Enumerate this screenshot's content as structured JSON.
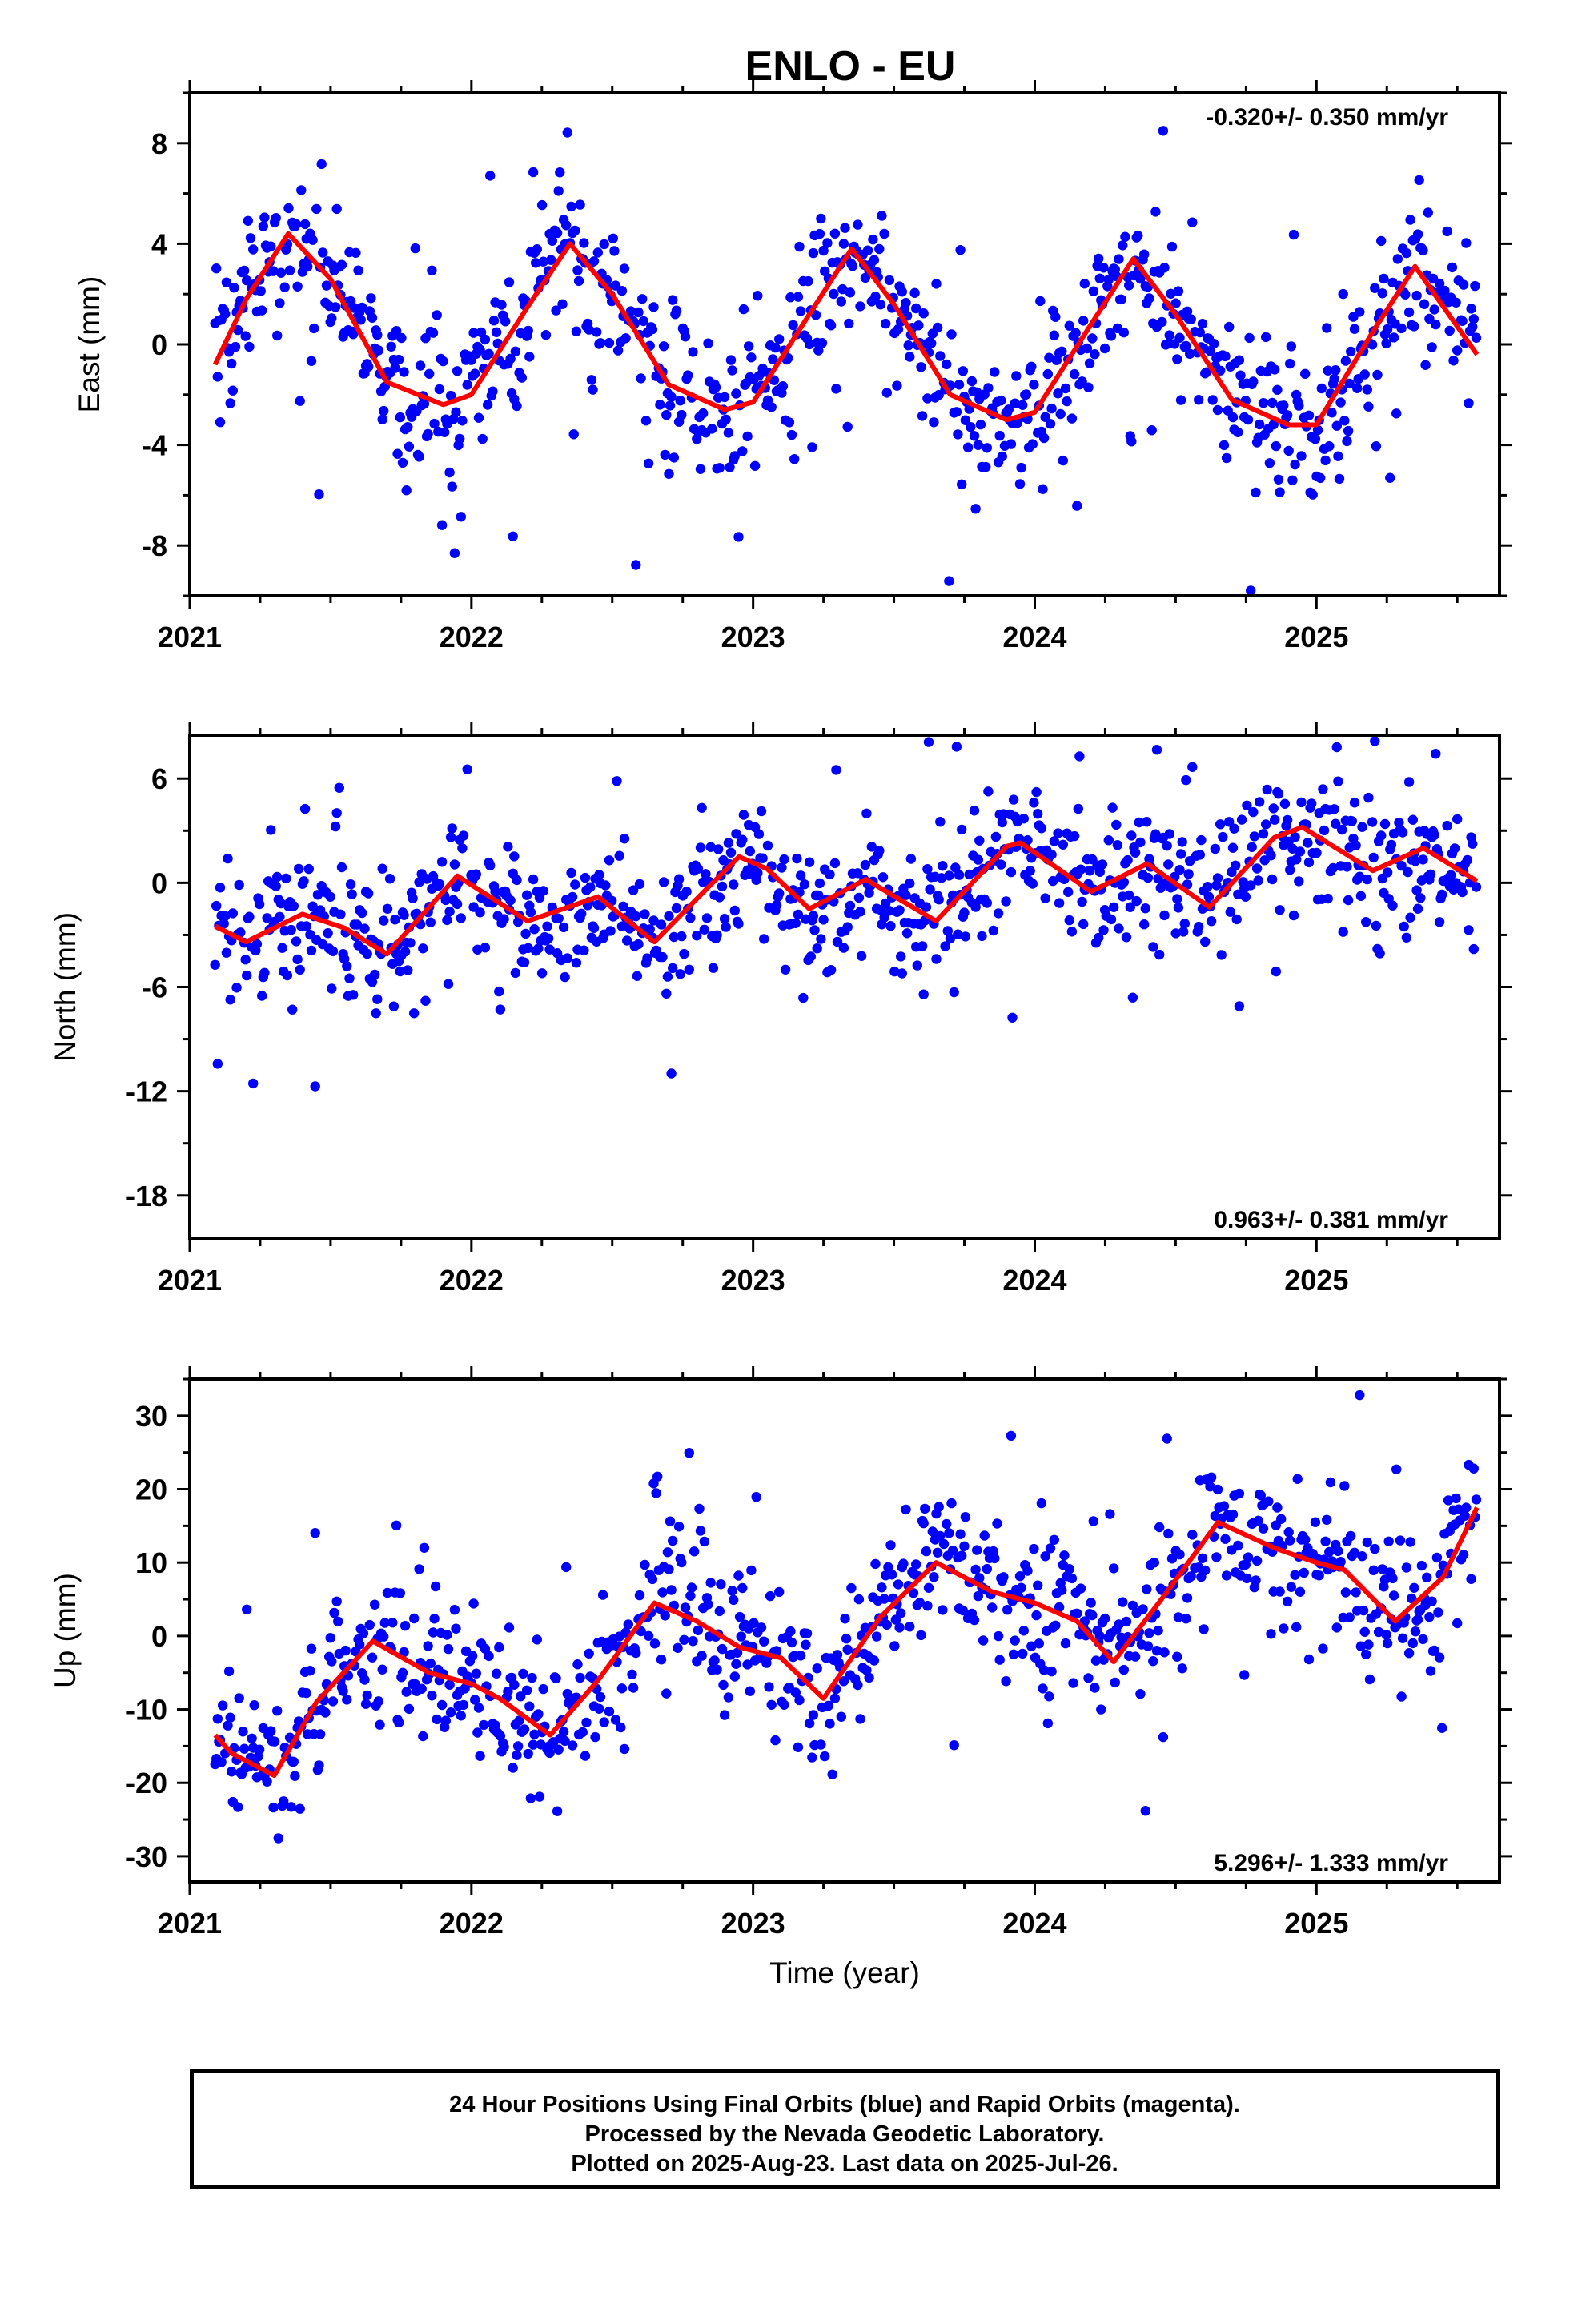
{
  "title": "ENLO - EU",
  "x_axis": {
    "label": "Time (year)",
    "ticks": [
      "2021",
      "2022",
      "2023",
      "2024",
      "2025"
    ]
  },
  "caption": [
    "24 Hour Positions Using Final Orbits (blue) and Rapid Orbits (magenta).",
    "Processed by the Nevada Geodetic Laboratory.",
    "Plotted on 2025-Aug-23. Last data on 2025-Jul-26."
  ],
  "colors": {
    "final_orbits_points": "#0000ff",
    "fit_line": "#ff0000",
    "frame": "#000000"
  },
  "chart_data": [
    {
      "type": "scatter",
      "panel": "east",
      "ylabel": "East (mm)",
      "rate_text": "-0.320+/- 0.350 mm/yr",
      "rate_position": "top-right",
      "xlim": [
        2021.0,
        2025.65
      ],
      "ylim": [
        -10,
        10
      ],
      "yticks": [
        "8",
        "4",
        "0",
        "-4",
        "-8"
      ],
      "ytick_values": [
        8,
        4,
        0,
        -4,
        -8
      ],
      "data_start": 2021.09,
      "data_end": 2025.57,
      "fit_curve": {
        "x": [
          2021.09,
          2021.2,
          2021.35,
          2021.5,
          2021.7,
          2021.9,
          2022.0,
          2022.2,
          2022.35,
          2022.5,
          2022.7,
          2022.9,
          2023.0,
          2023.2,
          2023.35,
          2023.5,
          2023.7,
          2023.9,
          2024.0,
          2024.2,
          2024.35,
          2024.5,
          2024.7,
          2024.9,
          2025.0,
          2025.2,
          2025.35,
          2025.57
        ],
        "y": [
          -0.8,
          1.8,
          4.4,
          2.6,
          -1.5,
          -2.4,
          -2.0,
          1.5,
          4.0,
          2.0,
          -1.6,
          -2.6,
          -2.3,
          1.2,
          3.8,
          1.6,
          -2.0,
          -3.0,
          -2.7,
          0.8,
          3.4,
          1.2,
          -2.2,
          -3.2,
          -3.2,
          0.5,
          3.1,
          -0.4
        ]
      },
      "scatter_sigma": 1.5
    },
    {
      "type": "scatter",
      "panel": "north",
      "ylabel": "North (mm)",
      "rate_text": "0.963+/- 0.381 mm/yr",
      "rate_position": "bottom-right",
      "xlim": [
        2021.0,
        2025.65
      ],
      "ylim": [
        -20.5,
        8.5
      ],
      "yticks": [
        "6",
        "0",
        "-6",
        "-12",
        "-18"
      ],
      "ytick_values": [
        6,
        0,
        -6,
        -12,
        -18
      ],
      "data_start": 2021.09,
      "data_end": 2025.57,
      "fit_curve": {
        "x": [
          2021.09,
          2021.2,
          2021.4,
          2021.55,
          2021.7,
          2021.95,
          2022.2,
          2022.45,
          2022.65,
          2022.85,
          2022.95,
          2023.05,
          2023.2,
          2023.4,
          2023.65,
          2023.9,
          2023.95,
          2024.2,
          2024.4,
          2024.62,
          2024.85,
          2024.95,
          2025.2,
          2025.38,
          2025.57
        ],
        "y": [
          -2.5,
          -3.4,
          -1.8,
          -2.6,
          -4.1,
          0.4,
          -2.2,
          -0.8,
          -3.4,
          -0.1,
          1.5,
          0.8,
          -1.5,
          0.2,
          -2.2,
          2.1,
          2.3,
          -0.5,
          1.1,
          -1.4,
          2.6,
          3.2,
          0.7,
          2.0,
          0.1
        ]
      },
      "scatter_sigma": 1.9
    },
    {
      "type": "scatter",
      "panel": "up",
      "ylabel": "Up (mm)",
      "xlabel": "Time (year)",
      "rate_text": "5.296+/- 1.333 mm/yr",
      "rate_position": "bottom-right",
      "xlim": [
        2021.0,
        2025.65
      ],
      "ylim": [
        -33.5,
        35
      ],
      "yticks": [
        "30",
        "20",
        "10",
        "0",
        "-10",
        "-20",
        "-30"
      ],
      "ytick_values": [
        30,
        20,
        10,
        0,
        -10,
        -20,
        -30
      ],
      "data_start": 2021.09,
      "data_end": 2025.57,
      "fit_curve": {
        "x": [
          2021.09,
          2021.15,
          2021.3,
          2021.45,
          2021.65,
          2021.85,
          2022.0,
          2022.1,
          2022.28,
          2022.45,
          2022.65,
          2022.8,
          2022.95,
          2023.1,
          2023.25,
          2023.45,
          2023.65,
          2023.85,
          2024.0,
          2024.15,
          2024.28,
          2024.45,
          2024.65,
          2024.85,
          2025.0,
          2025.1,
          2025.28,
          2025.45,
          2025.57
        ],
        "y": [
          -13.5,
          -16.0,
          -19.0,
          -9.0,
          -0.7,
          -5.0,
          -6.5,
          -8.5,
          -13.5,
          -6.0,
          4.5,
          2.0,
          -1.5,
          -3.0,
          -8.5,
          2.5,
          10.0,
          6.0,
          4.5,
          2.0,
          -3.5,
          5.0,
          15.5,
          12.0,
          10.0,
          9.0,
          2.0,
          8.0,
          17.5
        ]
      },
      "scatter_sigma": 5.0
    }
  ]
}
